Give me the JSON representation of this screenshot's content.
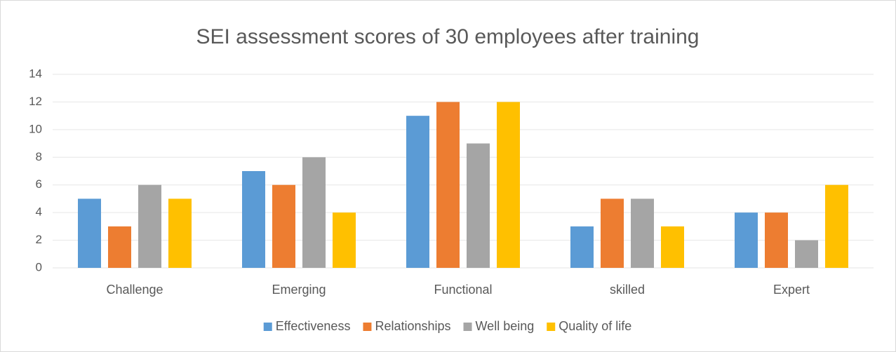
{
  "chart_data": {
    "type": "bar",
    "title": "SEI assessment scores of 30 employees after training",
    "categories": [
      "Challenge",
      "Emerging",
      "Functional",
      "skilled",
      "Expert"
    ],
    "series": [
      {
        "name": "Effectiveness",
        "color": "#5b9bd5",
        "values": [
          5,
          7,
          11,
          3,
          4
        ]
      },
      {
        "name": "Relationships",
        "color": "#ed7d31",
        "values": [
          3,
          6,
          12,
          5,
          4
        ]
      },
      {
        "name": "Well being",
        "color": "#a5a5a5",
        "values": [
          6,
          8,
          9,
          5,
          2
        ]
      },
      {
        "name": "Quality of life",
        "color": "#ffc000",
        "values": [
          5,
          4,
          12,
          3,
          6
        ]
      }
    ],
    "ylim": [
      0,
      14
    ],
    "yticks": [
      0,
      2,
      4,
      6,
      8,
      10,
      12,
      14
    ],
    "grid": true,
    "legend": "bottom"
  }
}
